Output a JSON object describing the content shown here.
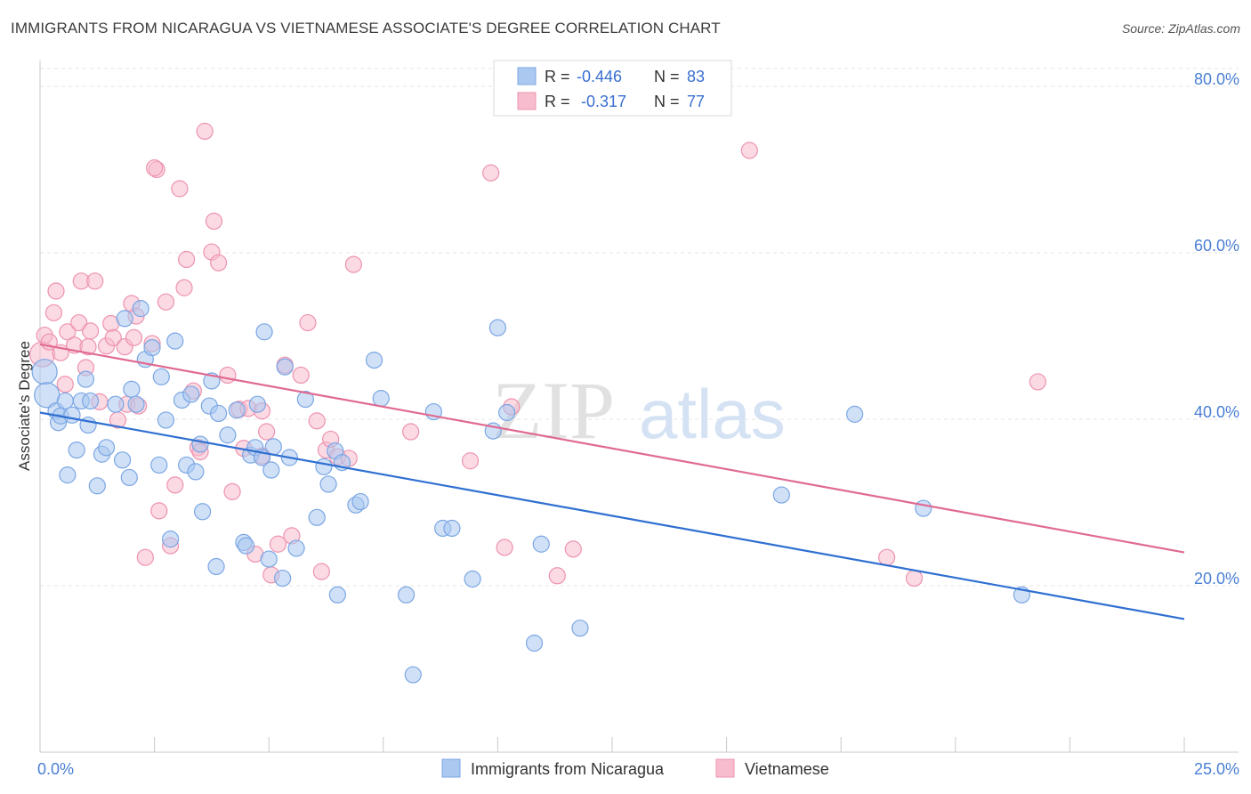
{
  "title": "IMMIGRANTS FROM NICARAGUA VS VIETNAMESE ASSOCIATE'S DEGREE CORRELATION CHART",
  "source": "Source: ZipAtlas.com",
  "watermark": {
    "zip": "ZIP",
    "atlas": "atlas"
  },
  "legend": {
    "rows": [
      {
        "r_label": "R =",
        "r_value": "-0.446",
        "n_label": "N =",
        "n_value": "83"
      },
      {
        "r_label": "R =",
        "r_value": " -0.317",
        "n_label": "N =",
        "n_value": "77"
      }
    ]
  },
  "chart_data": {
    "type": "scatter",
    "ylabel": "Associate's Degree",
    "xlim": [
      0,
      25
    ],
    "ylim": [
      0,
      80
    ],
    "xticks": [
      {
        "v": 0,
        "label": "0.0%"
      },
      {
        "v": 25,
        "label": "25.0%"
      }
    ],
    "yticks": [
      {
        "v": 20,
        "label": "20.0%"
      },
      {
        "v": 40,
        "label": "40.0%"
      },
      {
        "v": 60,
        "label": "60.0%"
      },
      {
        "v": 80,
        "label": "80.0%"
      }
    ],
    "colors": {
      "blue_fill": "#aac8f0",
      "blue_stroke": "#7aa6e4",
      "blue_line": "#2f6fd1",
      "pink_fill": "#f7bccd",
      "pink_stroke": "#ee93ae",
      "pink_line": "#e06a92"
    },
    "series": [
      {
        "name": "Immigrants from Nicaragua",
        "color": "blue",
        "trend": {
          "x0": 0,
          "y0": 40.8,
          "x1": 25,
          "y1": 16.0
        },
        "points": [
          [
            0.1,
            45.7
          ],
          [
            0.15,
            42.9
          ],
          [
            0.35,
            41.0
          ],
          [
            0.4,
            39.6
          ],
          [
            0.45,
            40.4
          ],
          [
            0.55,
            42.2
          ],
          [
            0.6,
            33.3
          ],
          [
            0.7,
            40.5
          ],
          [
            0.8,
            36.3
          ],
          [
            0.9,
            42.2
          ],
          [
            1.0,
            44.8
          ],
          [
            1.05,
            39.3
          ],
          [
            1.1,
            42.2
          ],
          [
            1.25,
            32.0
          ],
          [
            1.35,
            35.8
          ],
          [
            1.45,
            36.6
          ],
          [
            1.65,
            41.8
          ],
          [
            1.8,
            35.1
          ],
          [
            1.85,
            52.1
          ],
          [
            1.95,
            33.0
          ],
          [
            2.0,
            43.6
          ],
          [
            2.1,
            41.8
          ],
          [
            2.2,
            53.3
          ],
          [
            2.3,
            47.2
          ],
          [
            2.45,
            48.6
          ],
          [
            2.6,
            34.5
          ],
          [
            2.65,
            45.1
          ],
          [
            2.75,
            39.9
          ],
          [
            2.85,
            25.6
          ],
          [
            2.95,
            49.4
          ],
          [
            3.1,
            42.3
          ],
          [
            3.2,
            34.5
          ],
          [
            3.3,
            43.0
          ],
          [
            3.4,
            33.7
          ],
          [
            3.5,
            37.0
          ],
          [
            3.55,
            28.9
          ],
          [
            3.7,
            41.6
          ],
          [
            3.75,
            44.6
          ],
          [
            3.85,
            22.3
          ],
          [
            3.9,
            40.7
          ],
          [
            4.1,
            38.1
          ],
          [
            4.3,
            41.1
          ],
          [
            4.45,
            25.2
          ],
          [
            4.5,
            24.8
          ],
          [
            4.6,
            35.7
          ],
          [
            4.7,
            36.6
          ],
          [
            4.75,
            41.8
          ],
          [
            4.85,
            35.4
          ],
          [
            4.9,
            50.5
          ],
          [
            5.0,
            23.2
          ],
          [
            5.05,
            33.9
          ],
          [
            5.1,
            36.7
          ],
          [
            5.3,
            20.9
          ],
          [
            5.35,
            46.3
          ],
          [
            5.45,
            35.4
          ],
          [
            5.6,
            24.5
          ],
          [
            5.8,
            42.4
          ],
          [
            6.05,
            28.2
          ],
          [
            6.2,
            34.3
          ],
          [
            6.3,
            32.2
          ],
          [
            6.45,
            36.2
          ],
          [
            6.5,
            18.9
          ],
          [
            6.6,
            34.8
          ],
          [
            6.9,
            29.7
          ],
          [
            7.0,
            30.1
          ],
          [
            7.3,
            47.1
          ],
          [
            7.45,
            42.5
          ],
          [
            8.0,
            18.9
          ],
          [
            8.15,
            9.3
          ],
          [
            8.6,
            40.9
          ],
          [
            8.8,
            26.9
          ],
          [
            9.0,
            26.9
          ],
          [
            9.45,
            20.8
          ],
          [
            9.9,
            38.6
          ],
          [
            10.0,
            51.0
          ],
          [
            10.2,
            40.8
          ],
          [
            10.8,
            13.1
          ],
          [
            10.95,
            25.0
          ],
          [
            11.8,
            14.9
          ],
          [
            16.2,
            30.9
          ],
          [
            17.8,
            40.6
          ],
          [
            19.3,
            29.3
          ],
          [
            21.45,
            18.9
          ]
        ]
      },
      {
        "name": "Vietnamese",
        "color": "pink",
        "trend": {
          "x0": 0,
          "y0": 49.0,
          "x1": 25,
          "y1": 24.0
        },
        "points": [
          [
            0.05,
            47.8
          ],
          [
            0.1,
            50.1
          ],
          [
            0.2,
            49.3
          ],
          [
            0.3,
            52.8
          ],
          [
            0.35,
            55.4
          ],
          [
            0.45,
            48.0
          ],
          [
            0.55,
            44.2
          ],
          [
            0.6,
            50.5
          ],
          [
            0.75,
            48.9
          ],
          [
            0.85,
            51.6
          ],
          [
            0.9,
            56.6
          ],
          [
            1.0,
            46.2
          ],
          [
            1.05,
            48.7
          ],
          [
            1.1,
            50.6
          ],
          [
            1.2,
            56.6
          ],
          [
            1.3,
            42.1
          ],
          [
            1.45,
            48.8
          ],
          [
            1.55,
            51.5
          ],
          [
            1.6,
            49.8
          ],
          [
            1.7,
            39.9
          ],
          [
            1.85,
            48.7
          ],
          [
            1.9,
            41.8
          ],
          [
            2.0,
            53.9
          ],
          [
            2.05,
            49.8
          ],
          [
            2.1,
            52.4
          ],
          [
            2.15,
            41.6
          ],
          [
            2.3,
            23.4
          ],
          [
            2.45,
            49.1
          ],
          [
            2.55,
            70.0
          ],
          [
            2.6,
            29.0
          ],
          [
            2.75,
            54.1
          ],
          [
            2.85,
            24.8
          ],
          [
            2.95,
            32.1
          ],
          [
            3.05,
            67.7
          ],
          [
            3.15,
            55.8
          ],
          [
            3.2,
            59.2
          ],
          [
            3.35,
            43.4
          ],
          [
            3.45,
            36.6
          ],
          [
            3.5,
            36.1
          ],
          [
            3.6,
            74.6
          ],
          [
            3.75,
            60.1
          ],
          [
            3.8,
            63.8
          ],
          [
            3.9,
            58.8
          ],
          [
            4.1,
            45.3
          ],
          [
            4.2,
            31.3
          ],
          [
            4.35,
            41.2
          ],
          [
            4.45,
            36.5
          ],
          [
            4.55,
            41.3
          ],
          [
            4.7,
            23.8
          ],
          [
            4.85,
            35.6
          ],
          [
            4.95,
            38.5
          ],
          [
            5.05,
            21.3
          ],
          [
            5.2,
            25.0
          ],
          [
            5.35,
            46.5
          ],
          [
            5.5,
            26.0
          ],
          [
            5.7,
            45.3
          ],
          [
            5.85,
            51.6
          ],
          [
            6.05,
            39.8
          ],
          [
            6.15,
            21.7
          ],
          [
            6.25,
            36.3
          ],
          [
            6.35,
            37.6
          ],
          [
            6.5,
            35.5
          ],
          [
            6.75,
            35.3
          ],
          [
            6.85,
            58.6
          ],
          [
            8.1,
            38.5
          ],
          [
            9.4,
            35.0
          ],
          [
            9.85,
            69.6
          ],
          [
            10.15,
            24.6
          ],
          [
            10.3,
            41.5
          ],
          [
            11.3,
            21.2
          ],
          [
            11.65,
            24.4
          ],
          [
            15.5,
            72.3
          ],
          [
            18.5,
            23.4
          ],
          [
            19.1,
            20.9
          ],
          [
            21.8,
            44.5
          ],
          [
            2.5,
            70.2
          ],
          [
            4.85,
            41.0
          ]
        ]
      }
    ]
  },
  "bottom_legend": [
    {
      "label": "Immigrants from Nicaragua",
      "color": "blue"
    },
    {
      "label": "Vietnamese",
      "color": "pink"
    }
  ]
}
